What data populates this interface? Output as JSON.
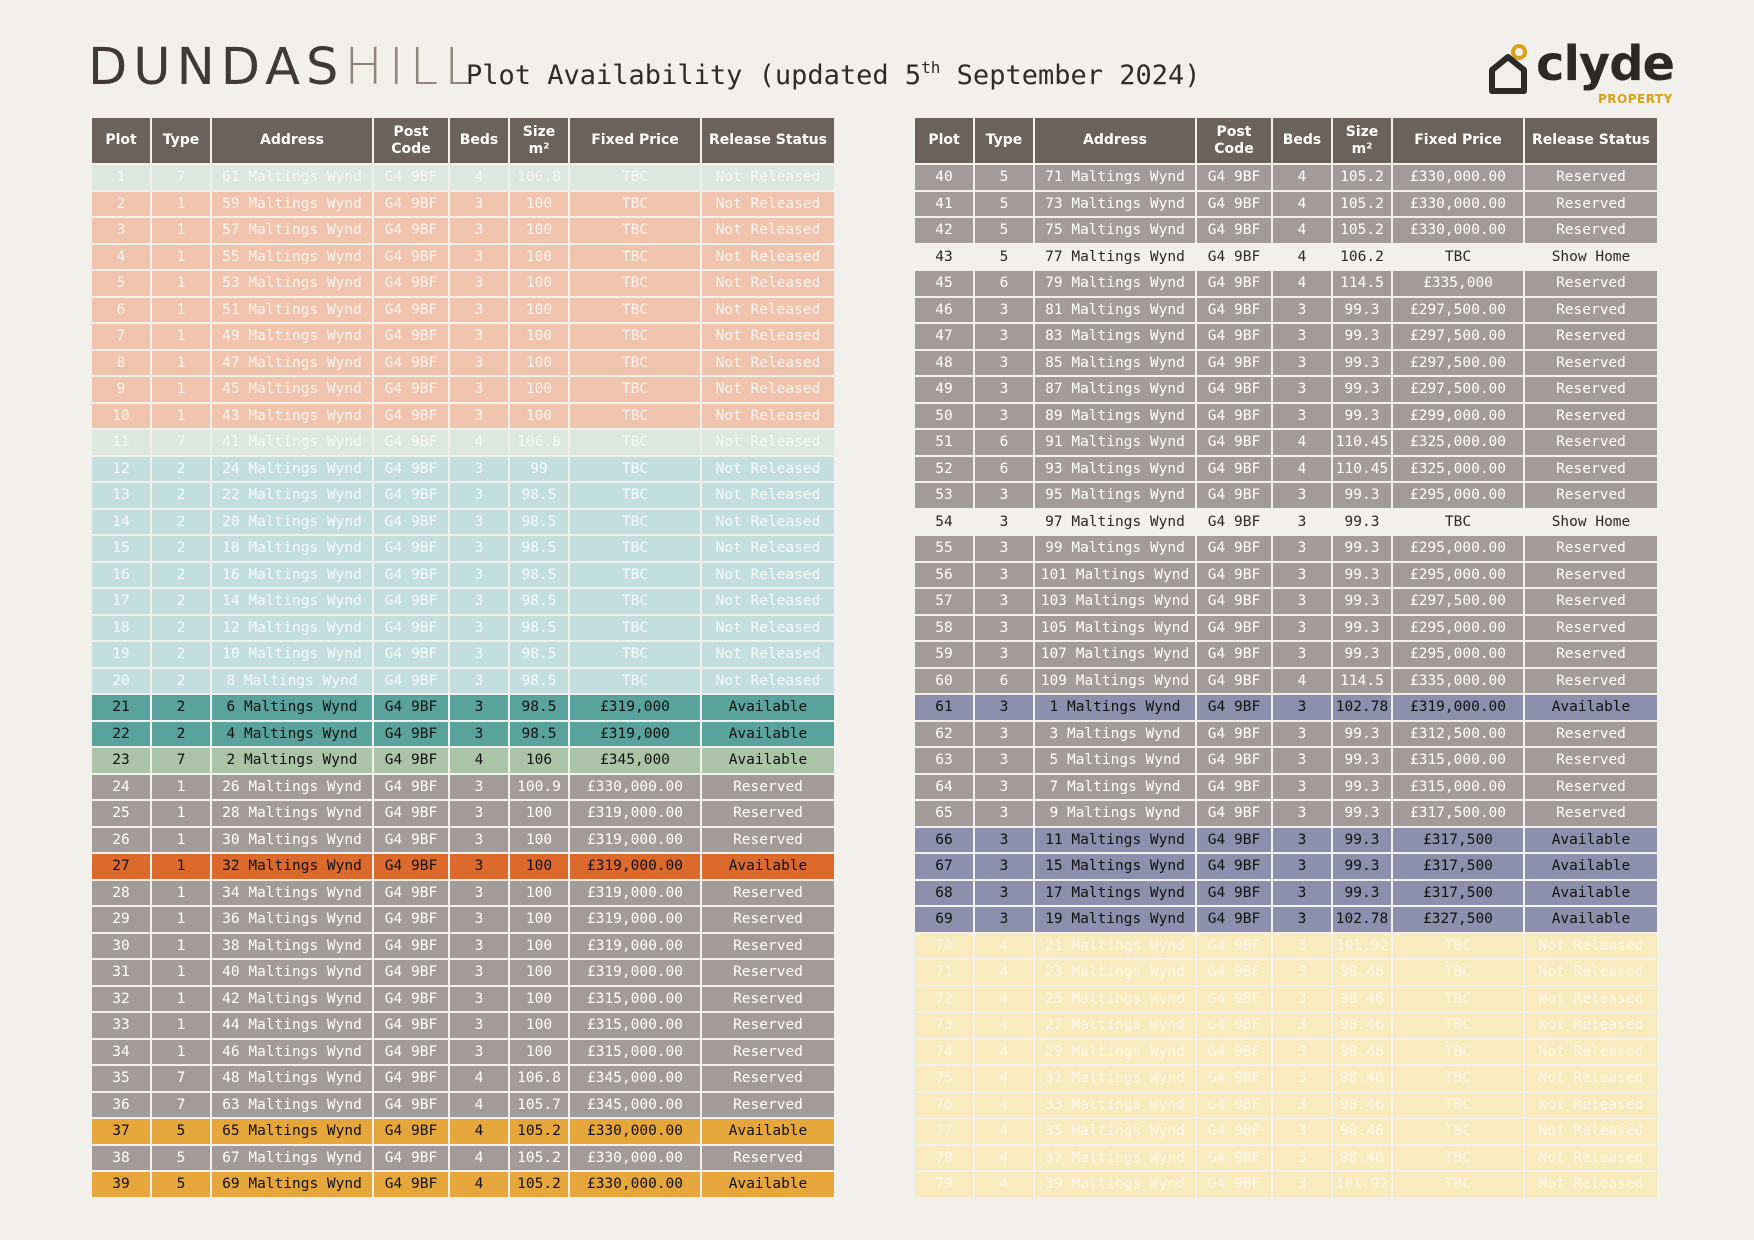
{
  "header": {
    "title_part1": "DUNDAS",
    "title_part2": "HILL",
    "subtitle_prefix": "Plot Availability (updated 5",
    "subtitle_sup": "th",
    "subtitle_suffix": " September 2024)",
    "logo_word": "clyde",
    "logo_sub": "PROPERTY"
  },
  "columns": [
    "Plot",
    "Type",
    "Address",
    "Post Code",
    "Beds",
    "Size m²",
    "Fixed Price",
    "Release Status"
  ],
  "colors": {
    "not_released_mint": "#dce7df",
    "not_released_peach": "#f0c3ad",
    "not_released_teal": "#c3dfdd",
    "not_released_yellow": "#faebbf",
    "reserved": "#a19b99",
    "available_teal": "#59a39c",
    "available_sage": "#abc4a8",
    "available_orange": "#dc6a2d",
    "available_amber": "#e5a63b",
    "available_slate": "#8e8fad",
    "header": "#6b615d",
    "accent": "#d9a219"
  },
  "left_table": [
    {
      "plot": "1",
      "type": "7",
      "address": "61 Maltings Wynd",
      "postcode": "G4 9BF",
      "beds": "4",
      "size": "106.8",
      "price": "TBC",
      "status": "Not Released",
      "style": "nr-mint"
    },
    {
      "plot": "2",
      "type": "1",
      "address": "59 Maltings Wynd",
      "postcode": "G4 9BF",
      "beds": "3",
      "size": "100",
      "price": "TBC",
      "status": "Not Released",
      "style": "nr-peach"
    },
    {
      "plot": "3",
      "type": "1",
      "address": "57 Maltings Wynd",
      "postcode": "G4 9BF",
      "beds": "3",
      "size": "100",
      "price": "TBC",
      "status": "Not Released",
      "style": "nr-peach"
    },
    {
      "plot": "4",
      "type": "1",
      "address": "55 Maltings Wynd",
      "postcode": "G4 9BF",
      "beds": "3",
      "size": "100",
      "price": "TBC",
      "status": "Not Released",
      "style": "nr-peach"
    },
    {
      "plot": "5",
      "type": "1",
      "address": "53 Maltings Wynd",
      "postcode": "G4 9BF",
      "beds": "3",
      "size": "100",
      "price": "TBC",
      "status": "Not Released",
      "style": "nr-peach"
    },
    {
      "plot": "6",
      "type": "1",
      "address": "51 Maltings Wynd",
      "postcode": "G4 9BF",
      "beds": "3",
      "size": "100",
      "price": "TBC",
      "status": "Not Released",
      "style": "nr-peach"
    },
    {
      "plot": "7",
      "type": "1",
      "address": "49 Maltings Wynd",
      "postcode": "G4 9BF",
      "beds": "3",
      "size": "100",
      "price": "TBC",
      "status": "Not Released",
      "style": "nr-peach"
    },
    {
      "plot": "8",
      "type": "1",
      "address": "47 Maltings Wynd",
      "postcode": "G4 9BF",
      "beds": "3",
      "size": "100",
      "price": "TBC",
      "status": "Not Released",
      "style": "nr-peach"
    },
    {
      "plot": "9",
      "type": "1",
      "address": "45 Maltings Wynd",
      "postcode": "G4 9BF",
      "beds": "3",
      "size": "100",
      "price": "TBC",
      "status": "Not Released",
      "style": "nr-peach"
    },
    {
      "plot": "10",
      "type": "1",
      "address": "43 Maltings Wynd",
      "postcode": "G4 9BF",
      "beds": "3",
      "size": "100",
      "price": "TBC",
      "status": "Not Released",
      "style": "nr-peach"
    },
    {
      "plot": "11",
      "type": "7",
      "address": "41 Maltings Wynd",
      "postcode": "G4 9BF",
      "beds": "4",
      "size": "106.8",
      "price": "TBC",
      "status": "Not Released",
      "style": "nr-mint"
    },
    {
      "plot": "12",
      "type": "2",
      "address": "24 Maltings Wynd",
      "postcode": "G4 9BF",
      "beds": "3",
      "size": "99",
      "price": "TBC",
      "status": "Not Released",
      "style": "nr-teal"
    },
    {
      "plot": "13",
      "type": "2",
      "address": "22 Maltings Wynd",
      "postcode": "G4 9BF",
      "beds": "3",
      "size": "98.5",
      "price": "TBC",
      "status": "Not Released",
      "style": "nr-teal"
    },
    {
      "plot": "14",
      "type": "2",
      "address": "20 Maltings Wynd",
      "postcode": "G4 9BF",
      "beds": "3",
      "size": "98.5",
      "price": "TBC",
      "status": "Not Released",
      "style": "nr-teal"
    },
    {
      "plot": "15",
      "type": "2",
      "address": "18 Maltings Wynd",
      "postcode": "G4 9BF",
      "beds": "3",
      "size": "98.5",
      "price": "TBC",
      "status": "Not Released",
      "style": "nr-teal"
    },
    {
      "plot": "16",
      "type": "2",
      "address": "16 Maltings Wynd",
      "postcode": "G4 9BF",
      "beds": "3",
      "size": "98.5",
      "price": "TBC",
      "status": "Not Released",
      "style": "nr-teal"
    },
    {
      "plot": "17",
      "type": "2",
      "address": "14 Maltings Wynd",
      "postcode": "G4 9BF",
      "beds": "3",
      "size": "98.5",
      "price": "TBC",
      "status": "Not Released",
      "style": "nr-teal"
    },
    {
      "plot": "18",
      "type": "2",
      "address": "12 Maltings Wynd",
      "postcode": "G4 9BF",
      "beds": "3",
      "size": "98.5",
      "price": "TBC",
      "status": "Not Released",
      "style": "nr-teal"
    },
    {
      "plot": "19",
      "type": "2",
      "address": "10 Maltings Wynd",
      "postcode": "G4 9BF",
      "beds": "3",
      "size": "98.5",
      "price": "TBC",
      "status": "Not Released",
      "style": "nr-teal"
    },
    {
      "plot": "20",
      "type": "2",
      "address": "8 Maltings Wynd",
      "postcode": "G4 9BF",
      "beds": "3",
      "size": "98.5",
      "price": "TBC",
      "status": "Not Released",
      "style": "nr-teal"
    },
    {
      "plot": "21",
      "type": "2",
      "address": "6 Maltings Wynd",
      "postcode": "G4 9BF",
      "beds": "3",
      "size": "98.5",
      "price": "£319,000",
      "status": "Available",
      "style": "av-teal"
    },
    {
      "plot": "22",
      "type": "2",
      "address": "4 Maltings Wynd",
      "postcode": "G4 9BF",
      "beds": "3",
      "size": "98.5",
      "price": "£319,000",
      "status": "Available",
      "style": "av-teal"
    },
    {
      "plot": "23",
      "type": "7",
      "address": "2 Maltings Wynd",
      "postcode": "G4 9BF",
      "beds": "4",
      "size": "106",
      "price": "£345,000",
      "status": "Available",
      "style": "av-sage"
    },
    {
      "plot": "24",
      "type": "1",
      "address": "26 Maltings Wynd",
      "postcode": "G4 9BF",
      "beds": "3",
      "size": "100.9",
      "price": "£330,000.00",
      "status": "Reserved",
      "style": "reserved"
    },
    {
      "plot": "25",
      "type": "1",
      "address": "28 Maltings Wynd",
      "postcode": "G4 9BF",
      "beds": "3",
      "size": "100",
      "price": "£319,000.00",
      "status": "Reserved",
      "style": "reserved"
    },
    {
      "plot": "26",
      "type": "1",
      "address": "30 Maltings Wynd",
      "postcode": "G4 9BF",
      "beds": "3",
      "size": "100",
      "price": "£319,000.00",
      "status": "Reserved",
      "style": "reserved"
    },
    {
      "plot": "27",
      "type": "1",
      "address": "32 Maltings Wynd",
      "postcode": "G4 9BF",
      "beds": "3",
      "size": "100",
      "price": "£319,000.00",
      "status": "Available",
      "style": "av-orange"
    },
    {
      "plot": "28",
      "type": "1",
      "address": "34 Maltings Wynd",
      "postcode": "G4 9BF",
      "beds": "3",
      "size": "100",
      "price": "£319,000.00",
      "status": "Reserved",
      "style": "reserved"
    },
    {
      "plot": "29",
      "type": "1",
      "address": "36 Maltings Wynd",
      "postcode": "G4 9BF",
      "beds": "3",
      "size": "100",
      "price": "£319,000.00",
      "status": "Reserved",
      "style": "reserved"
    },
    {
      "plot": "30",
      "type": "1",
      "address": "38 Maltings Wynd",
      "postcode": "G4 9BF",
      "beds": "3",
      "size": "100",
      "price": "£319,000.00",
      "status": "Reserved",
      "style": "reserved"
    },
    {
      "plot": "31",
      "type": "1",
      "address": "40 Maltings Wynd",
      "postcode": "G4 9BF",
      "beds": "3",
      "size": "100",
      "price": "£319,000.00",
      "status": "Reserved",
      "style": "reserved"
    },
    {
      "plot": "32",
      "type": "1",
      "address": "42 Maltings Wynd",
      "postcode": "G4 9BF",
      "beds": "3",
      "size": "100",
      "price": "£315,000.00",
      "status": "Reserved",
      "style": "reserved"
    },
    {
      "plot": "33",
      "type": "1",
      "address": "44 Maltings Wynd",
      "postcode": "G4 9BF",
      "beds": "3",
      "size": "100",
      "price": "£315,000.00",
      "status": "Reserved",
      "style": "reserved"
    },
    {
      "plot": "34",
      "type": "1",
      "address": "46 Maltings Wynd",
      "postcode": "G4 9BF",
      "beds": "3",
      "size": "100",
      "price": "£315,000.00",
      "status": "Reserved",
      "style": "reserved"
    },
    {
      "plot": "35",
      "type": "7",
      "address": "48 Maltings Wynd",
      "postcode": "G4 9BF",
      "beds": "4",
      "size": "106.8",
      "price": "£345,000.00",
      "status": "Reserved",
      "style": "reserved"
    },
    {
      "plot": "36",
      "type": "7",
      "address": "63 Maltings Wynd",
      "postcode": "G4 9BF",
      "beds": "4",
      "size": "105.7",
      "price": "£345,000.00",
      "status": "Reserved",
      "style": "reserved"
    },
    {
      "plot": "37",
      "type": "5",
      "address": "65 Maltings Wynd",
      "postcode": "G4 9BF",
      "beds": "4",
      "size": "105.2",
      "price": "£330,000.00",
      "status": "Available",
      "style": "av-amber"
    },
    {
      "plot": "38",
      "type": "5",
      "address": "67 Maltings Wynd",
      "postcode": "G4 9BF",
      "beds": "4",
      "size": "105.2",
      "price": "£330,000.00",
      "status": "Reserved",
      "style": "reserved"
    },
    {
      "plot": "39",
      "type": "5",
      "address": "69 Maltings Wynd",
      "postcode": "G4 9BF",
      "beds": "4",
      "size": "105.2",
      "price": "£330,000.00",
      "status": "Available",
      "style": "av-amber"
    }
  ],
  "right_table": [
    {
      "plot": "40",
      "type": "5",
      "address": "71 Maltings Wynd",
      "postcode": "G4 9BF",
      "beds": "4",
      "size": "105.2",
      "price": "£330,000.00",
      "status": "Reserved",
      "style": "reserved"
    },
    {
      "plot": "41",
      "type": "5",
      "address": "73 Maltings Wynd",
      "postcode": "G4 9BF",
      "beds": "4",
      "size": "105.2",
      "price": "£330,000.00",
      "status": "Reserved",
      "style": "reserved"
    },
    {
      "plot": "42",
      "type": "5",
      "address": "75 Maltings Wynd",
      "postcode": "G4 9BF",
      "beds": "4",
      "size": "105.2",
      "price": "£330,000.00",
      "status": "Reserved",
      "style": "reserved"
    },
    {
      "plot": "43",
      "type": "5",
      "address": "77 Maltings Wynd",
      "postcode": "G4 9BF",
      "beds": "4",
      "size": "106.2",
      "price": "TBC",
      "status": "Show Home",
      "style": "show"
    },
    {
      "plot": "45",
      "type": "6",
      "address": "79 Maltings Wynd",
      "postcode": "G4 9BF",
      "beds": "4",
      "size": "114.5",
      "price": "£335,000",
      "status": "Reserved",
      "style": "reserved"
    },
    {
      "plot": "46",
      "type": "3",
      "address": "81 Maltings Wynd",
      "postcode": "G4 9BF",
      "beds": "3",
      "size": "99.3",
      "price": "£297,500.00",
      "status": "Reserved",
      "style": "reserved"
    },
    {
      "plot": "47",
      "type": "3",
      "address": "83 Maltings Wynd",
      "postcode": "G4 9BF",
      "beds": "3",
      "size": "99.3",
      "price": "£297,500.00",
      "status": "Reserved",
      "style": "reserved"
    },
    {
      "plot": "48",
      "type": "3",
      "address": "85 Maltings Wynd",
      "postcode": "G4 9BF",
      "beds": "3",
      "size": "99.3",
      "price": "£297,500.00",
      "status": "Reserved",
      "style": "reserved"
    },
    {
      "plot": "49",
      "type": "3",
      "address": "87 Maltings Wynd",
      "postcode": "G4 9BF",
      "beds": "3",
      "size": "99.3",
      "price": "£297,500.00",
      "status": "Reserved",
      "style": "reserved"
    },
    {
      "plot": "50",
      "type": "3",
      "address": "89 Maltings Wynd",
      "postcode": "G4 9BF",
      "beds": "3",
      "size": "99.3",
      "price": "£299,000.00",
      "status": "Reserved",
      "style": "reserved"
    },
    {
      "plot": "51",
      "type": "6",
      "address": "91 Maltings Wynd",
      "postcode": "G4 9BF",
      "beds": "4",
      "size": "110.45",
      "price": "£325,000.00",
      "status": "Reserved",
      "style": "reserved"
    },
    {
      "plot": "52",
      "type": "6",
      "address": "93 Maltings Wynd",
      "postcode": "G4 9BF",
      "beds": "4",
      "size": "110.45",
      "price": "£325,000.00",
      "status": "Reserved",
      "style": "reserved"
    },
    {
      "plot": "53",
      "type": "3",
      "address": "95 Maltings Wynd",
      "postcode": "G4 9BF",
      "beds": "3",
      "size": "99.3",
      "price": "£295,000.00",
      "status": "Reserved",
      "style": "reserved"
    },
    {
      "plot": "54",
      "type": "3",
      "address": "97 Maltings Wynd",
      "postcode": "G4 9BF",
      "beds": "3",
      "size": "99.3",
      "price": "TBC",
      "status": "Show Home",
      "style": "show"
    },
    {
      "plot": "55",
      "type": "3",
      "address": "99 Maltings Wynd",
      "postcode": "G4 9BF",
      "beds": "3",
      "size": "99.3",
      "price": "£295,000.00",
      "status": "Reserved",
      "style": "reserved"
    },
    {
      "plot": "56",
      "type": "3",
      "address": "101 Maltings Wynd",
      "postcode": "G4 9BF",
      "beds": "3",
      "size": "99.3",
      "price": "£295,000.00",
      "status": "Reserved",
      "style": "reserved"
    },
    {
      "plot": "57",
      "type": "3",
      "address": "103 Maltings Wynd",
      "postcode": "G4 9BF",
      "beds": "3",
      "size": "99.3",
      "price": "£297,500.00",
      "status": "Reserved",
      "style": "reserved"
    },
    {
      "plot": "58",
      "type": "3",
      "address": "105 Maltings Wynd",
      "postcode": "G4 9BF",
      "beds": "3",
      "size": "99.3",
      "price": "£295,000.00",
      "status": "Reserved",
      "style": "reserved"
    },
    {
      "plot": "59",
      "type": "3",
      "address": "107 Maltings Wynd",
      "postcode": "G4 9BF",
      "beds": "3",
      "size": "99.3",
      "price": "£295,000.00",
      "status": "Reserved",
      "style": "reserved"
    },
    {
      "plot": "60",
      "type": "6",
      "address": "109 Maltings Wynd",
      "postcode": "G4 9BF",
      "beds": "4",
      "size": "114.5",
      "price": "£335,000.00",
      "status": "Reserved",
      "style": "reserved"
    },
    {
      "plot": "61",
      "type": "3",
      "address": "1 Maltings Wynd",
      "postcode": "G4 9BF",
      "beds": "3",
      "size": "102.78",
      "price": "£319,000.00",
      "status": "Available",
      "style": "av-slate"
    },
    {
      "plot": "62",
      "type": "3",
      "address": "3 Maltings Wynd",
      "postcode": "G4 9BF",
      "beds": "3",
      "size": "99.3",
      "price": "£312,500.00",
      "status": "Reserved",
      "style": "reserved"
    },
    {
      "plot": "63",
      "type": "3",
      "address": "5 Maltings Wynd",
      "postcode": "G4 9BF",
      "beds": "3",
      "size": "99.3",
      "price": "£315,000.00",
      "status": "Reserved",
      "style": "reserved"
    },
    {
      "plot": "64",
      "type": "3",
      "address": "7 Maltings Wynd",
      "postcode": "G4 9BF",
      "beds": "3",
      "size": "99.3",
      "price": "£315,000.00",
      "status": "Reserved",
      "style": "reserved"
    },
    {
      "plot": "65",
      "type": "3",
      "address": "9 Maltings Wynd",
      "postcode": "G4 9BF",
      "beds": "3",
      "size": "99.3",
      "price": "£317,500.00",
      "status": "Reserved",
      "style": "reserved"
    },
    {
      "plot": "66",
      "type": "3",
      "address": "11 Maltings Wynd",
      "postcode": "G4 9BF",
      "beds": "3",
      "size": "99.3",
      "price": "£317,500",
      "status": "Available",
      "style": "av-slate"
    },
    {
      "plot": "67",
      "type": "3",
      "address": "15 Maltings Wynd",
      "postcode": "G4 9BF",
      "beds": "3",
      "size": "99.3",
      "price": "£317,500",
      "status": "Available",
      "style": "av-slate"
    },
    {
      "plot": "68",
      "type": "3",
      "address": "17 Maltings Wynd",
      "postcode": "G4 9BF",
      "beds": "3",
      "size": "99.3",
      "price": "£317,500",
      "status": "Available",
      "style": "av-slate"
    },
    {
      "plot": "69",
      "type": "3",
      "address": "19 Maltings Wynd",
      "postcode": "G4 9BF",
      "beds": "3",
      "size": "102.78",
      "price": "£327,500",
      "status": "Available",
      "style": "av-slate"
    },
    {
      "plot": "70",
      "type": "4",
      "address": "21 Maltings Wynd",
      "postcode": "G4 9BF",
      "beds": "3",
      "size": "101.92",
      "price": "TBC",
      "status": "Not Released",
      "style": "nr-yellow"
    },
    {
      "plot": "71",
      "type": "4",
      "address": "23 Maltings Wynd",
      "postcode": "G4 9BF",
      "beds": "3",
      "size": "98.46",
      "price": "TBC",
      "status": "Not Released",
      "style": "nr-yellow"
    },
    {
      "plot": "72",
      "type": "4",
      "address": "25 Maltings Wynd",
      "postcode": "G4 9BF",
      "beds": "3",
      "size": "98.46",
      "price": "TBC",
      "status": "Not Released",
      "style": "nr-yellow"
    },
    {
      "plot": "73",
      "type": "4",
      "address": "27 Maltings Wynd",
      "postcode": "G4 9BF",
      "beds": "3",
      "size": "98.46",
      "price": "TBC",
      "status": "Not Released",
      "style": "nr-yellow"
    },
    {
      "plot": "74",
      "type": "4",
      "address": "29 Maltings Wynd",
      "postcode": "G4 9BF",
      "beds": "3",
      "size": "98.46",
      "price": "TBC",
      "status": "Not Released",
      "style": "nr-yellow"
    },
    {
      "plot": "75",
      "type": "4",
      "address": "31 Maltings Wynd",
      "postcode": "G4 9BF",
      "beds": "3",
      "size": "98.46",
      "price": "TBC",
      "status": "Not Released",
      "style": "nr-yellow"
    },
    {
      "plot": "76",
      "type": "4",
      "address": "33 Maltings Wynd",
      "postcode": "G4 9BF",
      "beds": "3",
      "size": "98.46",
      "price": "TBC",
      "status": "Not Released",
      "style": "nr-yellow"
    },
    {
      "plot": "77",
      "type": "4",
      "address": "35 Maltings Wynd",
      "postcode": "G4 9BF",
      "beds": "3",
      "size": "98.46",
      "price": "TBC",
      "status": "Not Released",
      "style": "nr-yellow"
    },
    {
      "plot": "78",
      "type": "4",
      "address": "37 Maltings Wynd",
      "postcode": "G4 9BF",
      "beds": "3",
      "size": "98.46",
      "price": "TBC",
      "status": "Not Released",
      "style": "nr-yellow"
    },
    {
      "plot": "79",
      "type": "4",
      "address": "39 Maltings Wynd",
      "postcode": "G4 9BF",
      "beds": "3",
      "size": "101.92",
      "price": "TBC",
      "status": "Not Released",
      "style": "nr-yellow"
    }
  ]
}
